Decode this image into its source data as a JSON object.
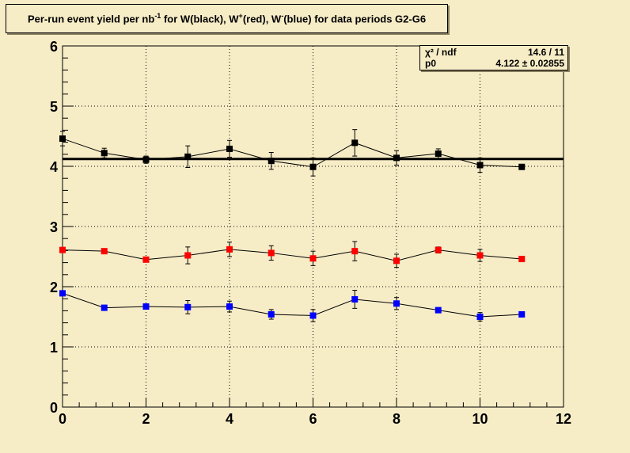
{
  "title": {
    "parts": [
      "Per-run event yield per nb",
      "-1",
      " for W(black), W",
      "+",
      "(red), W",
      "-",
      "(blue) for data periods G2-G6"
    ]
  },
  "stats": {
    "row1_key": "χ² / ndf",
    "row1_val": "14.6 / 11",
    "row2_key": "p0",
    "row2_val": "4.122 ± 0.02855"
  },
  "colors": {
    "background": "#f6ecc6",
    "black": "#000000",
    "red": "#ff0000",
    "blue": "#0000ff"
  },
  "chart_data": {
    "type": "scatter",
    "xlim": [
      0,
      12
    ],
    "ylim": [
      0,
      6
    ],
    "x_ticks": [
      0,
      2,
      4,
      6,
      8,
      10,
      12
    ],
    "y_ticks": [
      0,
      1,
      2,
      3,
      4,
      5,
      6
    ],
    "grid": true,
    "fit": {
      "p0": 4.122,
      "p0_err": 0.02855,
      "chi2": 14.6,
      "ndf": 11
    },
    "series": [
      {
        "color": "#000000",
        "x": [
          0,
          1,
          2,
          3,
          4,
          5,
          6,
          7,
          8,
          9,
          10,
          11
        ],
        "y": [
          4.46,
          4.22,
          4.11,
          4.16,
          4.29,
          4.09,
          3.99,
          4.39,
          4.14,
          4.21,
          4.02,
          3.99
        ],
        "err": [
          0.12,
          0.08,
          0.06,
          0.18,
          0.14,
          0.14,
          0.15,
          0.22,
          0.12,
          0.08,
          0.12,
          0.0
        ]
      },
      {
        "color": "#ff0000",
        "x": [
          0,
          1,
          2,
          3,
          4,
          5,
          6,
          7,
          8,
          9,
          10,
          11
        ],
        "y": [
          2.61,
          2.59,
          2.45,
          2.52,
          2.62,
          2.56,
          2.47,
          2.59,
          2.43,
          2.61,
          2.52,
          2.46
        ],
        "err": [
          0.0,
          0.0,
          0.0,
          0.14,
          0.12,
          0.12,
          0.12,
          0.16,
          0.11,
          0.05,
          0.1,
          0.0
        ]
      },
      {
        "color": "#0000ff",
        "x": [
          0,
          1,
          2,
          3,
          4,
          5,
          6,
          7,
          8,
          9,
          10,
          11
        ],
        "y": [
          1.89,
          1.65,
          1.67,
          1.66,
          1.67,
          1.54,
          1.52,
          1.79,
          1.72,
          1.61,
          1.5,
          1.54
        ],
        "err": [
          0.0,
          0.0,
          0.0,
          0.11,
          0.09,
          0.08,
          0.1,
          0.15,
          0.1,
          0.0,
          0.07,
          0.0
        ]
      }
    ]
  }
}
